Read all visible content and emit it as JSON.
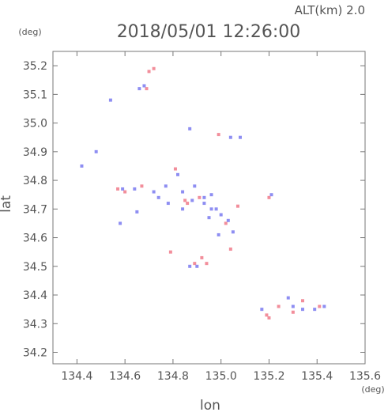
{
  "header": {
    "altitude": "ALT(km) 2.0",
    "timestamp": "2018/05/01 12:26:00"
  },
  "chart_data": {
    "type": "scatter",
    "title": "2018/05/01 12:26:00",
    "xlabel": "lon",
    "ylabel": "lat",
    "x_unit": "(deg)",
    "y_unit": "(deg)",
    "xlim": [
      134.3,
      135.6
    ],
    "ylim": [
      34.16,
      35.25
    ],
    "xticks": [
      "134.4",
      "134.6",
      "134.8",
      "135.0",
      "135.2",
      "135.4",
      "135.6"
    ],
    "yticks": [
      "34.2",
      "34.3",
      "34.4",
      "34.5",
      "34.6",
      "34.7",
      "34.8",
      "34.9",
      "35.0",
      "35.1",
      "35.2"
    ],
    "colors": {
      "positive": "#f07a8a",
      "negative": "#7a7af0",
      "axis": "#777777"
    },
    "series": [
      {
        "color": "positive",
        "points": [
          [
            134.72,
            35.19
          ],
          [
            134.7,
            35.18
          ],
          [
            134.69,
            35.12
          ],
          [
            134.57,
            34.77
          ],
          [
            134.6,
            34.76
          ],
          [
            134.67,
            34.78
          ],
          [
            134.81,
            34.84
          ],
          [
            134.85,
            34.73
          ],
          [
            134.86,
            34.72
          ],
          [
            134.79,
            34.55
          ],
          [
            134.89,
            34.51
          ],
          [
            134.94,
            34.51
          ],
          [
            134.92,
            34.53
          ],
          [
            134.99,
            34.96
          ],
          [
            135.07,
            34.71
          ],
          [
            135.02,
            34.65
          ],
          [
            135.04,
            34.56
          ],
          [
            135.19,
            34.33
          ],
          [
            135.2,
            34.32
          ],
          [
            135.24,
            34.36
          ],
          [
            135.3,
            34.34
          ],
          [
            135.34,
            34.38
          ],
          [
            135.41,
            34.36
          ],
          [
            135.2,
            34.74
          ],
          [
            134.91,
            34.74
          ]
        ]
      },
      {
        "color": "negative",
        "points": [
          [
            134.68,
            35.13
          ],
          [
            134.66,
            35.12
          ],
          [
            134.54,
            35.08
          ],
          [
            134.48,
            34.9
          ],
          [
            134.42,
            34.85
          ],
          [
            134.59,
            34.77
          ],
          [
            134.64,
            34.77
          ],
          [
            134.72,
            34.76
          ],
          [
            134.77,
            34.78
          ],
          [
            134.82,
            34.82
          ],
          [
            134.84,
            34.76
          ],
          [
            134.88,
            34.73
          ],
          [
            134.93,
            34.74
          ],
          [
            134.96,
            34.75
          ],
          [
            134.98,
            34.7
          ],
          [
            135.0,
            34.68
          ],
          [
            135.03,
            34.66
          ],
          [
            135.05,
            34.62
          ],
          [
            134.99,
            34.61
          ],
          [
            134.95,
            34.67
          ],
          [
            134.9,
            34.5
          ],
          [
            134.87,
            34.5
          ],
          [
            134.87,
            34.98
          ],
          [
            135.04,
            34.95
          ],
          [
            135.08,
            34.95
          ],
          [
            134.58,
            34.65
          ],
          [
            134.84,
            34.7
          ],
          [
            134.78,
            34.72
          ],
          [
            134.74,
            34.74
          ],
          [
            135.34,
            34.35
          ],
          [
            135.39,
            34.35
          ],
          [
            135.43,
            34.36
          ],
          [
            135.28,
            34.39
          ],
          [
            135.3,
            34.36
          ],
          [
            135.17,
            34.35
          ],
          [
            134.96,
            34.7
          ],
          [
            135.21,
            34.75
          ],
          [
            134.65,
            34.69
          ],
          [
            134.89,
            34.78
          ],
          [
            134.93,
            34.72
          ]
        ]
      }
    ]
  }
}
